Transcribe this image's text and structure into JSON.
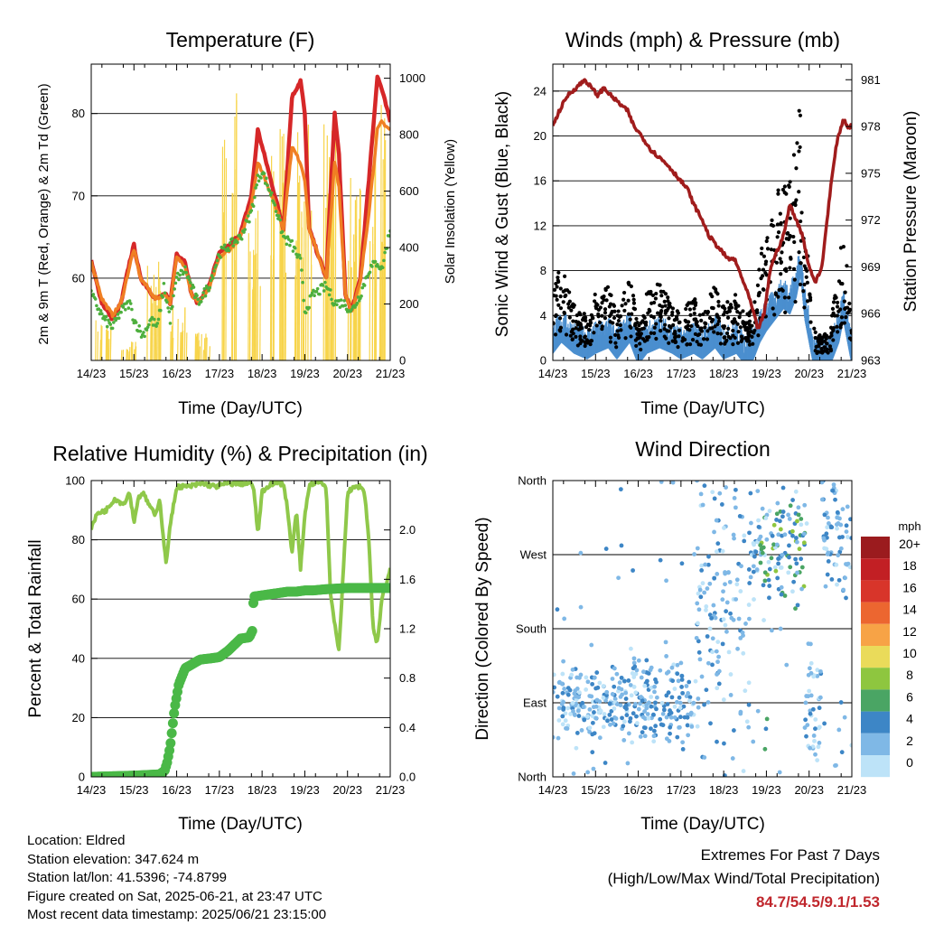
{
  "info": {
    "location": "Location: Eldred",
    "elevation": "Station elevation: 347.624 m",
    "latlon": "Station lat/lon: 41.5396; -74.8799",
    "created": "Figure created on Sat, 2025-06-21, at 23:47 UTC",
    "recent": "Most recent data timestamp: 2025/06/21 23:15:00"
  },
  "extremes": {
    "title": "Extremes For Past 7 Days",
    "subtitle": "(High/Low/Max Wind/Total Precipitation)",
    "values": "84.7/54.5/9.1/1.53"
  },
  "colors": {
    "temp_red": "#d62728",
    "temp_orange": "#f07f23",
    "dewpoint_green": "#4daf3d",
    "solar_yellow": "#f7d44a",
    "wind_blue": "#4b8fcf",
    "gust_black": "#000000",
    "pressure_maroon": "#a01c1c",
    "rh_green": "#8fc84a",
    "precip_green": "#4ab847"
  },
  "chart_data": [
    {
      "type": "line",
      "title": "Temperature (F)",
      "xlabel": "Time (Day/UTC)",
      "ylabel": "2m & 9m T (Red, Orange) & 2m Td (Green)",
      "y2label": "Solar Insolation (Yellow)",
      "x_ticks": [
        "14/23",
        "15/23",
        "16/23",
        "17/23",
        "18/23",
        "19/23",
        "20/23",
        "21/23"
      ],
      "xlim": [
        0,
        7
      ],
      "ylim": [
        50,
        86
      ],
      "y_ticks": [
        60,
        70,
        80
      ],
      "y2lim": [
        0,
        1050
      ],
      "y2_ticks": [
        0,
        200,
        400,
        600,
        800,
        1000
      ],
      "grid": "horizontal",
      "series": [
        {
          "name": "2m T",
          "color": "#d62728",
          "x": [
            0,
            0.25,
            0.5,
            0.7,
            0.9,
            1.0,
            1.15,
            1.3,
            1.5,
            1.75,
            1.85,
            2.0,
            2.2,
            2.35,
            2.5,
            2.75,
            3.0,
            3.25,
            3.5,
            3.75,
            3.9,
            4.0,
            4.3,
            4.5,
            4.7,
            4.9,
            5.0,
            5.1,
            5.3,
            5.5,
            5.7,
            5.8,
            5.95,
            6.1,
            6.3,
            6.5,
            6.7,
            6.8,
            7.0
          ],
          "y": [
            62,
            57,
            55,
            57,
            62,
            64,
            60,
            59,
            57.5,
            58,
            57,
            63,
            62,
            58,
            57,
            59,
            63,
            64,
            65.5,
            70,
            78,
            76,
            70,
            66,
            82,
            84,
            80,
            66,
            63,
            60,
            80,
            75,
            58,
            56,
            60,
            72,
            84.5,
            83,
            79
          ]
        },
        {
          "name": "9m T",
          "color": "#f07f23",
          "x": [
            0,
            0.25,
            0.5,
            0.7,
            0.9,
            1.0,
            1.15,
            1.3,
            1.5,
            1.75,
            1.85,
            2.0,
            2.2,
            2.35,
            2.5,
            2.75,
            3.0,
            3.25,
            3.5,
            3.75,
            3.9,
            4.0,
            4.3,
            4.5,
            4.7,
            4.9,
            5.0,
            5.1,
            5.3,
            5.5,
            5.7,
            5.8,
            5.95,
            6.1,
            6.3,
            6.5,
            6.7,
            6.8,
            7.0
          ],
          "y": [
            62,
            57.5,
            55.5,
            57,
            61.5,
            63.5,
            60,
            59,
            57.5,
            58,
            57,
            62.5,
            61.5,
            58,
            57,
            58.5,
            62.5,
            63.5,
            65,
            69,
            74,
            73,
            69,
            66,
            76,
            74,
            72,
            66,
            63,
            60,
            74,
            71,
            58,
            56,
            59.5,
            68,
            78,
            79,
            78
          ]
        },
        {
          "name": "2m Td",
          "color": "#4daf3d",
          "x": [
            0,
            0.3,
            0.5,
            0.7,
            0.9,
            1.0,
            1.2,
            1.4,
            1.55,
            1.7,
            1.85,
            2.0,
            2.2,
            2.5,
            2.75,
            3.0,
            3.25,
            3.5,
            3.75,
            3.9,
            4.0,
            4.3,
            4.5,
            4.7,
            4.9,
            5.0,
            5.2,
            5.5,
            5.7,
            5.9,
            6.1,
            6.3,
            6.5,
            6.7,
            6.8,
            7.0
          ],
          "y": [
            58,
            55,
            54,
            56,
            57,
            55,
            53,
            55,
            54,
            59,
            55,
            60,
            61,
            57,
            59,
            63,
            64,
            65,
            68,
            72,
            73,
            69,
            65,
            64,
            62,
            56,
            58,
            59,
            57,
            57,
            56,
            58,
            61,
            62,
            61,
            66
          ]
        },
        {
          "name": "Solar Insolation",
          "color": "#f7d44a",
          "axis": "y2",
          "peaks": [
            150,
            70,
            380,
            200,
            100,
            950,
            550,
            850,
            850,
            880,
            700,
            970
          ]
        }
      ]
    },
    {
      "type": "line",
      "title": "Winds (mph) & Pressure (mb)",
      "xlabel": "Time (Day/UTC)",
      "ylabel": "Sonic Wind & Gust (Blue, Black)",
      "y2label": "Station Pressure (Maroon)",
      "x_ticks": [
        "14/23",
        "15/23",
        "16/23",
        "17/23",
        "18/23",
        "19/23",
        "20/23",
        "21/23"
      ],
      "xlim": [
        0,
        7
      ],
      "ylim": [
        0,
        26.4
      ],
      "y_ticks": [
        0,
        4,
        8,
        12,
        16,
        20,
        24
      ],
      "y2lim": [
        963,
        982
      ],
      "y2_ticks": [
        963,
        966,
        969,
        972,
        975,
        978,
        981
      ],
      "grid": "horizontal",
      "series": [
        {
          "name": "Station Pressure",
          "color": "#a01c1c",
          "axis": "y2",
          "x": [
            0,
            0.15,
            0.35,
            0.55,
            0.75,
            0.9,
            1.05,
            1.2,
            1.35,
            1.55,
            1.75,
            1.9,
            2.05,
            2.3,
            2.5,
            2.7,
            2.85,
            3.0,
            3.15,
            3.3,
            3.5,
            3.65,
            3.8,
            3.95,
            4.1,
            4.25,
            4.4,
            4.6,
            4.8,
            4.95,
            5.1,
            5.25,
            5.4,
            5.55,
            5.7,
            5.85,
            6.0,
            6.15,
            6.3,
            6.5,
            6.65,
            6.8,
            6.9,
            7.0
          ],
          "y": [
            978,
            979,
            980,
            980.5,
            981,
            980.5,
            980,
            980.5,
            980,
            979.5,
            979,
            978,
            977.5,
            976.5,
            976,
            975.5,
            975,
            974.5,
            974,
            973,
            972,
            971,
            970.5,
            970,
            969.5,
            969.5,
            968.5,
            967,
            965,
            966,
            969,
            970,
            971,
            973,
            972,
            971,
            969,
            968,
            969,
            974,
            977,
            978.5,
            978,
            978
          ]
        },
        {
          "name": "Sonic Wind",
          "color": "#4b8fcf",
          "x": [
            0,
            0.2,
            0.5,
            0.8,
            1.0,
            1.3,
            1.5,
            1.8,
            2.0,
            2.2,
            2.5,
            2.8,
            3.0,
            3.3,
            3.5,
            3.8,
            4.0,
            4.3,
            4.5,
            4.7,
            4.85,
            5.0,
            5.2,
            5.4,
            5.55,
            5.7,
            5.8,
            5.9,
            6.1,
            6.3,
            6.5,
            6.7,
            6.8,
            6.9,
            7.0
          ],
          "y": [
            2,
            3,
            2,
            1.5,
            2,
            2.5,
            1.5,
            3,
            1,
            2,
            2.5,
            2,
            1.5,
            2,
            1.5,
            2.5,
            1.5,
            2,
            1,
            1.5,
            3,
            4,
            5,
            6,
            5.5,
            7,
            9,
            5,
            1,
            0.5,
            1,
            3,
            5,
            3,
            1
          ]
        },
        {
          "name": "Gust",
          "color": "#000000",
          "x": [
            0,
            0.2,
            0.5,
            0.8,
            1.0,
            1.3,
            1.5,
            1.8,
            2.0,
            2.2,
            2.5,
            2.8,
            3.0,
            3.3,
            3.5,
            3.8,
            4.0,
            4.3,
            4.5,
            4.7,
            4.85,
            5.0,
            5.2,
            5.4,
            5.55,
            5.7,
            5.8,
            5.9,
            6.1,
            6.3,
            6.5,
            6.7,
            6.8,
            6.9,
            7.0
          ],
          "y": [
            6,
            9,
            5,
            4,
            6,
            7,
            4,
            8,
            3,
            6,
            7,
            5,
            4,
            6,
            4,
            7,
            5,
            6,
            4,
            5,
            10,
            12,
            14,
            17,
            16,
            20,
            24,
            13,
            3,
            2,
            3,
            9,
            12,
            8,
            3
          ]
        }
      ]
    },
    {
      "type": "line",
      "title": "Relative Humidity (%) & Precipitation (in)",
      "xlabel": "Time (Day/UTC)",
      "ylabel": "Percent & Total Rainfall",
      "x_ticks": [
        "14/23",
        "15/23",
        "16/23",
        "17/23",
        "18/23",
        "19/23",
        "20/23",
        "21/23"
      ],
      "xlim": [
        0,
        7
      ],
      "ylim": [
        0,
        100
      ],
      "y_ticks": [
        0,
        20,
        40,
        60,
        80,
        100
      ],
      "y2lim": [
        0,
        2.4
      ],
      "y2_ticks": [
        0.0,
        0.4,
        0.8,
        1.2,
        1.6,
        2.0
      ],
      "grid": "horizontal",
      "series": [
        {
          "name": "Relative Humidity",
          "color": "#8fc84a",
          "x": [
            0,
            0.15,
            0.35,
            0.55,
            0.75,
            0.9,
            1.0,
            1.1,
            1.2,
            1.35,
            1.5,
            1.6,
            1.75,
            1.85,
            2.0,
            2.3,
            2.6,
            2.9,
            3.2,
            3.5,
            3.7,
            3.8,
            3.9,
            4.0,
            4.2,
            4.5,
            4.6,
            4.7,
            4.8,
            4.9,
            5.0,
            5.1,
            5.3,
            5.5,
            5.6,
            5.8,
            6.0,
            6.2,
            6.3,
            6.4,
            6.5,
            6.6,
            6.7,
            6.8,
            7.0
          ],
          "y": [
            84,
            89,
            90,
            94,
            92,
            96,
            86,
            94,
            96,
            92,
            88,
            94,
            72,
            85,
            98,
            98,
            99,
            98,
            99,
            99,
            99,
            98,
            82,
            96,
            99,
            99,
            90,
            75,
            90,
            70,
            88,
            98,
            100,
            98,
            62,
            42,
            96,
            98,
            98,
            96,
            80,
            50,
            45,
            60,
            70
          ]
        },
        {
          "name": "Total Rainfall",
          "color": "#4ab847",
          "axis": "y2",
          "x": [
            0,
            1.0,
            1.6,
            1.72,
            1.78,
            1.85,
            1.95,
            2.05,
            2.2,
            2.4,
            2.55,
            2.8,
            3.0,
            3.2,
            3.35,
            3.5,
            3.7,
            3.78,
            3.8,
            4.2,
            4.6,
            4.8,
            5.0,
            5.2,
            5.5,
            6.0,
            6.5,
            7.0
          ],
          "y": [
            0,
            0.01,
            0.02,
            0.05,
            0.12,
            0.25,
            0.55,
            0.75,
            0.88,
            0.92,
            0.95,
            0.96,
            0.97,
            1.02,
            1.07,
            1.12,
            1.13,
            1.19,
            1.46,
            1.48,
            1.5,
            1.5,
            1.51,
            1.51,
            1.52,
            1.53,
            1.53,
            1.53
          ]
        }
      ]
    },
    {
      "type": "scatter",
      "title": "Wind Direction",
      "xlabel": "Time (Day/UTC)",
      "ylabel": "Direction (Colored By Speed)",
      "x_ticks": [
        "14/23",
        "15/23",
        "16/23",
        "17/23",
        "18/23",
        "19/23",
        "20/23",
        "21/23"
      ],
      "xlim": [
        0,
        7
      ],
      "ylim": [
        0,
        360
      ],
      "y_ticks": [
        0,
        90,
        180,
        270,
        360
      ],
      "y_tick_labels": [
        "North",
        "East",
        "South",
        "West",
        "North"
      ],
      "grid": "horizontal",
      "clusters": [
        {
          "x0": 0.0,
          "x1": 1.8,
          "dir_center": 90,
          "dir_spread": 30
        },
        {
          "x0": 1.8,
          "x1": 3.3,
          "dir_center": 95,
          "dir_spread": 40
        },
        {
          "x0": 3.3,
          "x1": 4.6,
          "dir_center": 200,
          "dir_spread": 120
        },
        {
          "x0": 4.6,
          "x1": 5.9,
          "dir_center": 275,
          "dir_spread": 50
        },
        {
          "x0": 5.9,
          "x1": 6.3,
          "dir_center": 90,
          "dir_spread": 60
        },
        {
          "x0": 6.3,
          "x1": 7.0,
          "dir_center": 290,
          "dir_spread": 50
        }
      ],
      "colorbar": {
        "title": "mph",
        "labels": [
          "20+",
          "18",
          "16",
          "14",
          "12",
          "10",
          "8",
          "6",
          "4",
          "2",
          "0"
        ],
        "colors": [
          "#9b1b1e",
          "#c21f24",
          "#d8352a",
          "#ec6630",
          "#f7a346",
          "#eadb5a",
          "#8ec63f",
          "#4aa564",
          "#3d86c6",
          "#7fb8e6",
          "#bde3f8"
        ]
      }
    }
  ]
}
